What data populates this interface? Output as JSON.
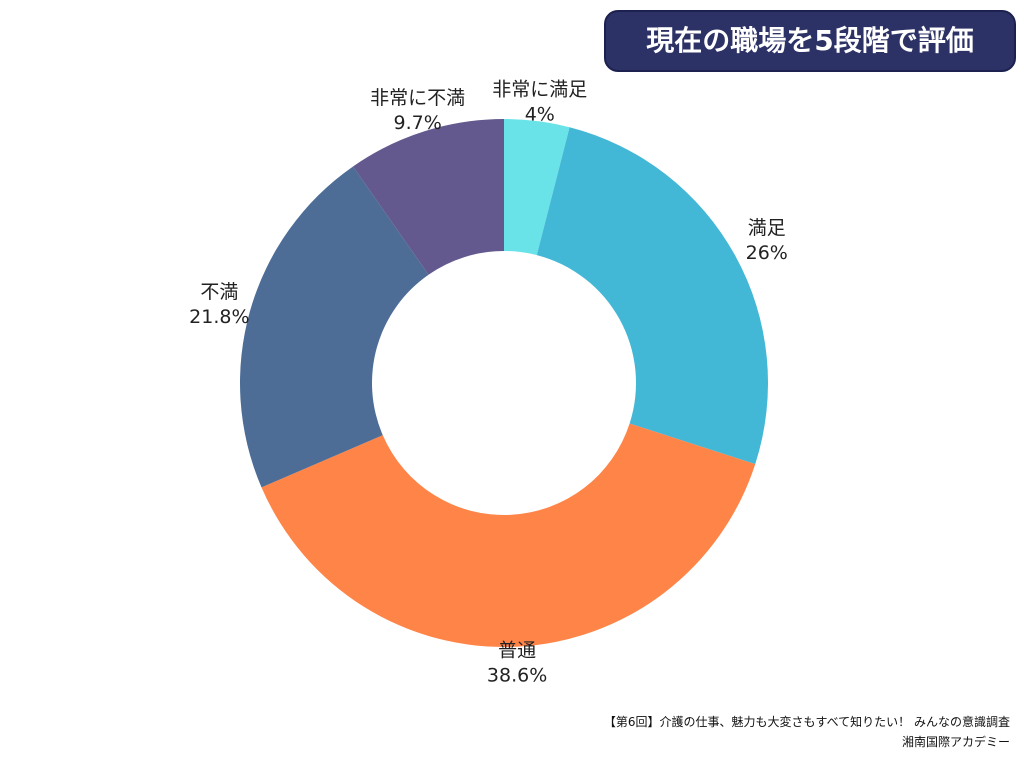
{
  "title": "現在の職場を5段階で評価",
  "chart_data": {
    "type": "pie",
    "donut": true,
    "categories": [
      "非常に満足",
      "満足",
      "普通",
      "不満",
      "非常に不満"
    ],
    "values": [
      4,
      26,
      38.6,
      21.8,
      9.7
    ],
    "value_labels": [
      "4%",
      "26%",
      "38.6%",
      "21.8%",
      "9.7%"
    ],
    "colors": [
      "#6ae3e8",
      "#43b7d6",
      "#ff8447",
      "#4d6d97",
      "#64598e"
    ],
    "legend": "none"
  },
  "source": {
    "line1": "【第6回】介護の仕事、魅力も大変さもすべて知りたい！ みんなの意識調査",
    "line2": "湘南国際アカデミー"
  }
}
